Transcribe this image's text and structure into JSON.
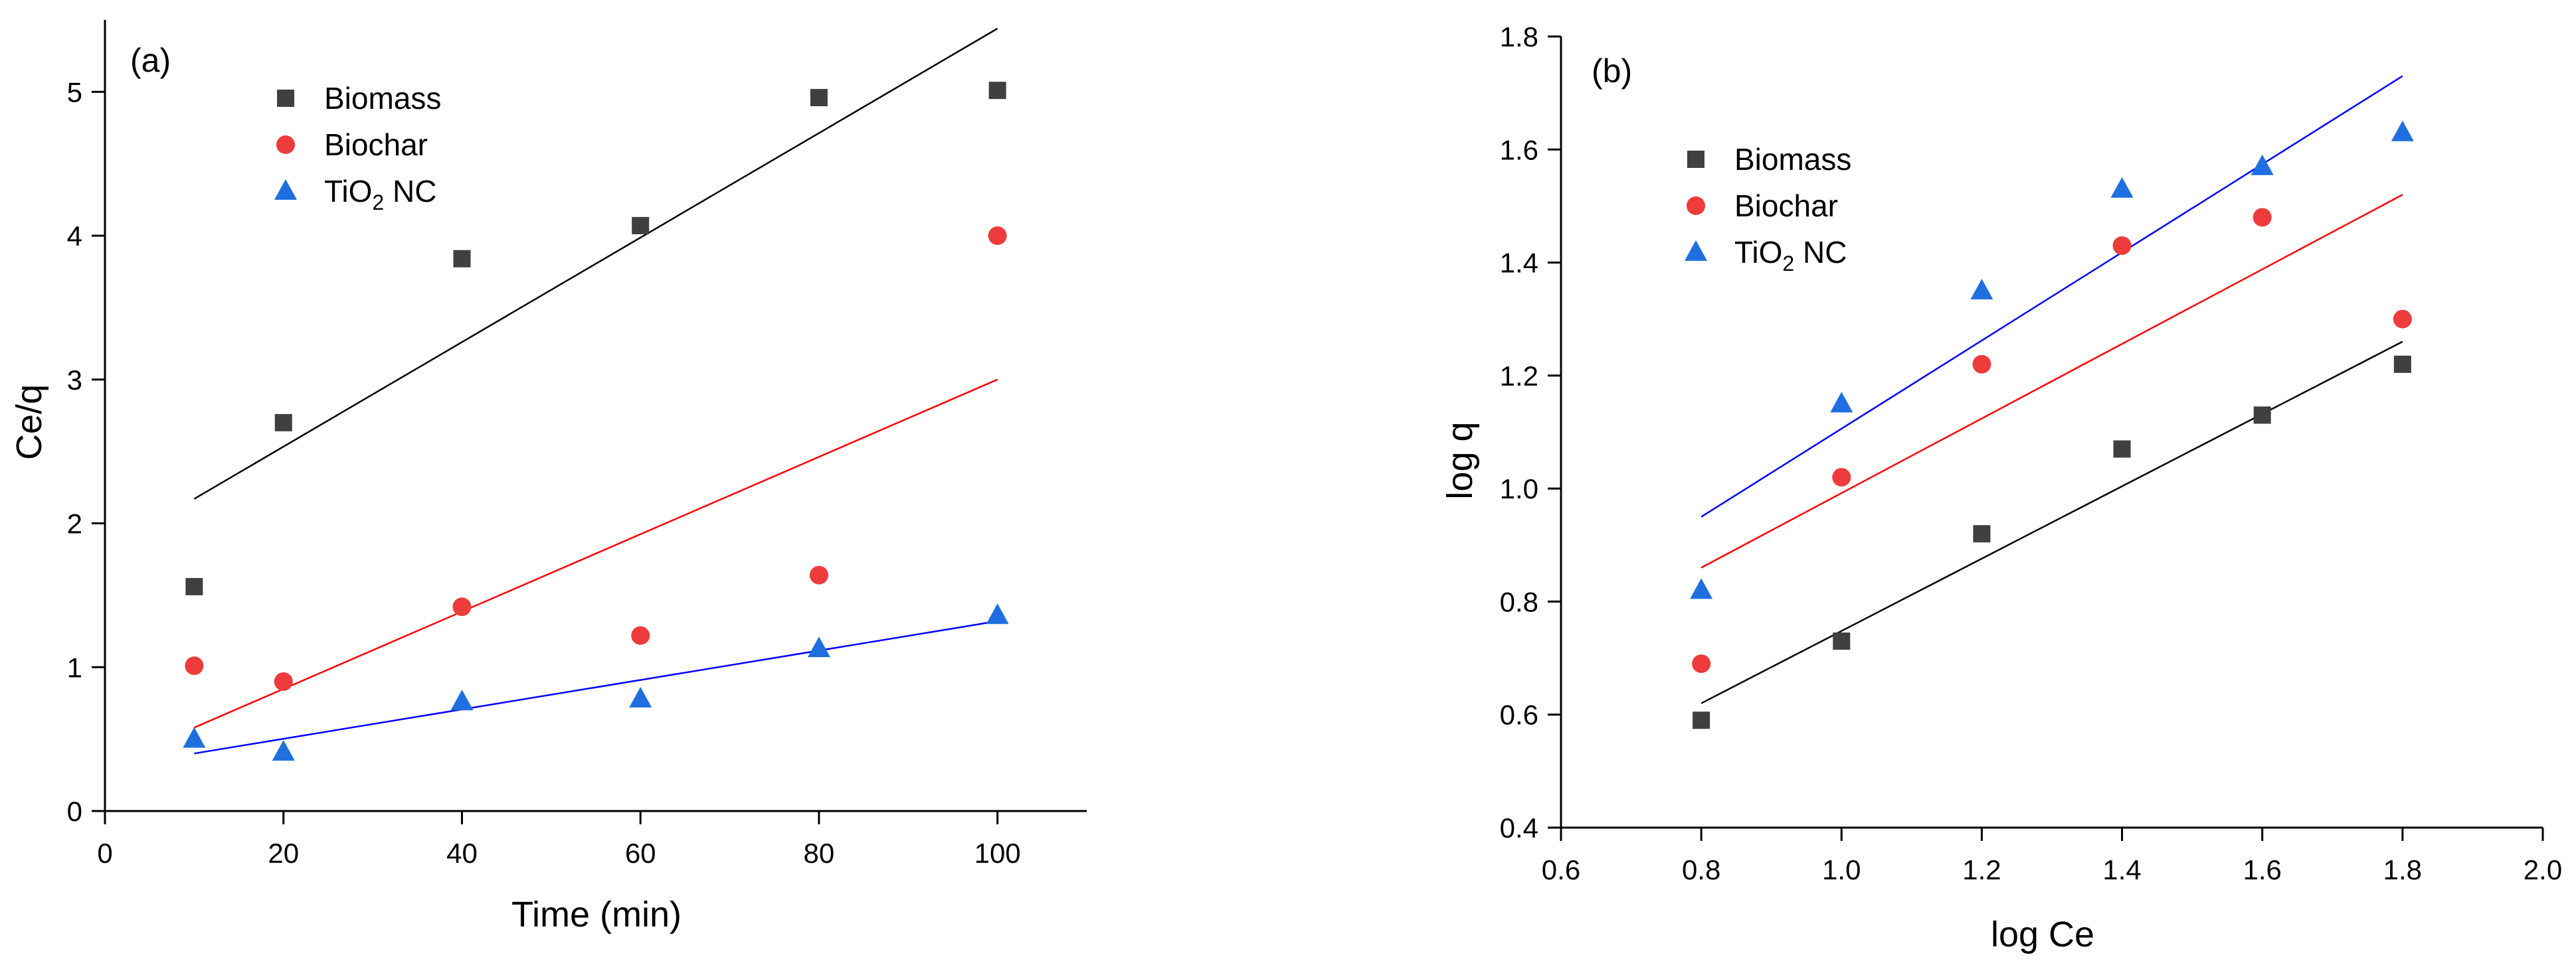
{
  "chart_data": [
    {
      "type": "scatter",
      "panel_label": "(a)",
      "xlabel": "Time (min)",
      "ylabel": "Ce/q",
      "xlim": [
        0,
        110
      ],
      "ylim": [
        0,
        5.5
      ],
      "xticks": [
        0,
        20,
        40,
        60,
        80,
        100
      ],
      "yticks": [
        0,
        1,
        2,
        3,
        4,
        5
      ],
      "legend_position": "top-left",
      "series": [
        {
          "name": "Biomass",
          "label_parts": [
            "Biomass"
          ],
          "color": "#404040",
          "line_color": "#000000",
          "marker": "square",
          "x": [
            10,
            20,
            40,
            60,
            80,
            100
          ],
          "y": [
            1.56,
            2.7,
            3.84,
            4.07,
            4.96,
            5.01
          ],
          "fit": {
            "x": [
              10,
              100
            ],
            "y": [
              2.17,
              5.44
            ]
          }
        },
        {
          "name": "Biochar",
          "label_parts": [
            "Biochar"
          ],
          "color": "#ee3b3b",
          "line_color": "#ff0000",
          "marker": "circle",
          "x": [
            10,
            20,
            40,
            60,
            80,
            100
          ],
          "y": [
            1.01,
            0.9,
            1.42,
            1.22,
            1.64,
            4.0
          ],
          "fit": {
            "x": [
              10,
              100
            ],
            "y": [
              0.58,
              3.0
            ]
          }
        },
        {
          "name": "TiO2 NC",
          "label_parts": [
            "TiO",
            "2",
            " NC"
          ],
          "color": "#1f6fe0",
          "line_color": "#0000ff",
          "marker": "triangle",
          "x": [
            10,
            20,
            40,
            60,
            80,
            100
          ],
          "y": [
            0.5,
            0.41,
            0.76,
            0.78,
            1.13,
            1.36
          ],
          "fit": {
            "x": [
              10,
              100
            ],
            "y": [
              0.4,
              1.32
            ]
          }
        }
      ]
    },
    {
      "type": "scatter",
      "panel_label": "(b)",
      "xlabel": "log Ce",
      "ylabel": "log q",
      "xlim": [
        0.6,
        2.0
      ],
      "ylim": [
        0.4,
        1.8
      ],
      "xticks": [
        0.6,
        0.8,
        1.0,
        1.2,
        1.4,
        1.6,
        1.8,
        2.0
      ],
      "yticks": [
        0.4,
        0.6,
        0.8,
        1.0,
        1.2,
        1.4,
        1.6,
        1.8
      ],
      "legend_position": "top-left",
      "series": [
        {
          "name": "Biomass",
          "label_parts": [
            "Biomass"
          ],
          "color": "#404040",
          "line_color": "#000000",
          "marker": "square",
          "x": [
            0.8,
            1.0,
            1.2,
            1.4,
            1.6,
            1.8
          ],
          "y": [
            0.59,
            0.73,
            0.92,
            1.07,
            1.13,
            1.22
          ],
          "fit": {
            "x": [
              0.8,
              1.8
            ],
            "y": [
              0.62,
              1.26
            ]
          }
        },
        {
          "name": "Biochar",
          "label_parts": [
            "Biochar"
          ],
          "color": "#ee3b3b",
          "line_color": "#ff0000",
          "marker": "circle",
          "x": [
            0.8,
            1.0,
            1.2,
            1.4,
            1.6,
            1.8
          ],
          "y": [
            0.69,
            1.02,
            1.22,
            1.43,
            1.48,
            1.3
          ],
          "fit": {
            "x": [
              0.8,
              1.8
            ],
            "y": [
              0.86,
              1.52
            ]
          }
        },
        {
          "name": "TiO2 NC",
          "label_parts": [
            "TiO",
            "2",
            " NC"
          ],
          "color": "#1f6fe0",
          "line_color": "#0000ff",
          "marker": "triangle",
          "x": [
            0.8,
            1.0,
            1.2,
            1.4,
            1.6,
            1.8
          ],
          "y": [
            0.82,
            1.15,
            1.35,
            1.53,
            1.57,
            1.63
          ],
          "fit": {
            "x": [
              0.8,
              1.8
            ],
            "y": [
              0.95,
              1.73
            ]
          }
        }
      ]
    }
  ]
}
